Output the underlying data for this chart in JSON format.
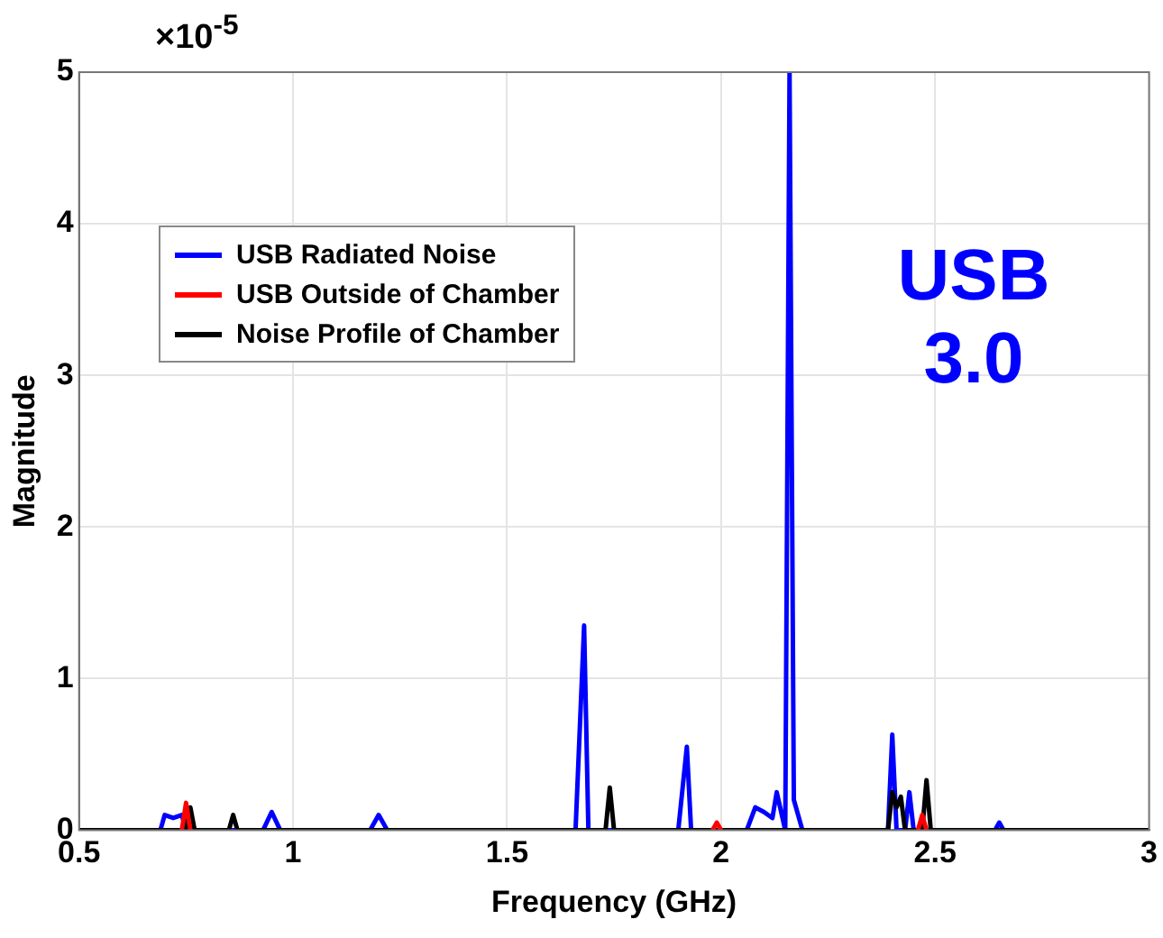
{
  "chart_data": {
    "type": "line",
    "xlabel": "Frequency (GHz)",
    "ylabel": "Magnitude",
    "xlim": [
      0.5,
      3
    ],
    "xticks": [
      0.5,
      1,
      1.5,
      2,
      2.5,
      3
    ],
    "ylim": [
      0,
      5
    ],
    "yticks": [
      0,
      1,
      2,
      3,
      4,
      5
    ],
    "grid": true,
    "legend": "top left",
    "marker": "none",
    "line_style": "solid",
    "annotations": [
      "×10$^{-5}$",
      "USB 3.0"
    ],
    "series": [
      {
        "name": "USB Radiated Noise",
        "color": "#0000ff",
        "x": [
          0.5,
          0.69,
          0.7,
          0.72,
          0.74,
          0.75,
          0.93,
          0.95,
          0.97,
          1.18,
          1.2,
          1.22,
          1.66,
          1.68,
          1.69,
          1.9,
          1.92,
          1.93,
          2.06,
          2.08,
          2.1,
          2.12,
          2.13,
          2.15,
          2.16,
          2.17,
          2.19,
          2.39,
          2.4,
          2.41,
          2.43,
          2.44,
          2.45,
          2.64,
          2.65,
          2.66,
          3
        ],
        "values": [
          0,
          0,
          0.1,
          0.08,
          0.1,
          0,
          0,
          0.12,
          0,
          0,
          0.1,
          0,
          0,
          1.35,
          0,
          0,
          0.55,
          0,
          0,
          0.15,
          0.12,
          0.08,
          0.25,
          0,
          5,
          0.2,
          0,
          0,
          0.63,
          0,
          0,
          0.25,
          0,
          0,
          0.05,
          0,
          0
        ]
      },
      {
        "name": "USB Outside of Chamber",
        "color": "#ff0000",
        "x": [
          0.74,
          0.75,
          0.76,
          1.5,
          1.98,
          1.99,
          2.0,
          2.2,
          2.46,
          2.47,
          2.48
        ],
        "values": [
          0,
          0.18,
          0,
          null,
          0,
          0.05,
          0,
          null,
          0,
          0.1,
          0
        ]
      },
      {
        "name": "Noise Profile of Chamber",
        "color": "#000000",
        "x": [
          0.5,
          0.75,
          0.76,
          0.77,
          0.85,
          0.86,
          0.87,
          1.73,
          1.74,
          1.75,
          2.39,
          2.4,
          2.41,
          2.42,
          2.43,
          2.47,
          2.48,
          2.49,
          3
        ],
        "values": [
          0,
          0,
          0.15,
          0,
          0,
          0.1,
          0,
          0,
          0.28,
          0,
          0,
          0.25,
          0.15,
          0.22,
          0,
          0,
          0.33,
          0,
          0
        ]
      }
    ]
  }
}
